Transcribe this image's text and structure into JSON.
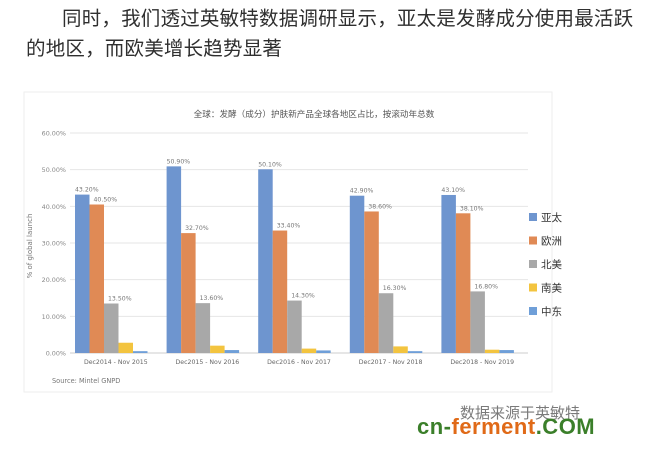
{
  "intro_text": "同时，我们透过英敏特数据调研显示，亚太是发酵成分使用最活跃的地区，而欧美增长趋势显著",
  "chart_data": {
    "type": "bar",
    "title": "全球：发酵（成分）护肤新产品全球各地区占比，按滚动年总数",
    "ylabel": "% of global launch",
    "xlabel": "",
    "ylim": [
      0,
      60
    ],
    "yticks": [
      "0.00%",
      "10.00%",
      "20.00%",
      "30.00%",
      "40.00%",
      "50.00%",
      "60.00%"
    ],
    "grid": true,
    "legend_position": "right",
    "categories": [
      "Dec2014 - Nov 2015",
      "Dec2015 - Nov 2016",
      "Dec2016 - Nov 2017",
      "Dec2017 - Nov 2018",
      "Dec2018 - Nov 2019"
    ],
    "series": [
      {
        "name": "亚太",
        "color": "#6e95cf",
        "values": [
          43.2,
          50.9,
          50.1,
          42.9,
          43.1
        ],
        "labels": [
          "43.20%",
          "50.90%",
          "50.10%",
          "42.90%",
          "43.10%"
        ]
      },
      {
        "name": "欧洲",
        "color": "#e08a55",
        "values": [
          40.5,
          32.7,
          33.4,
          38.6,
          38.1
        ],
        "labels": [
          "40.50%",
          "32.70%",
          "33.40%",
          "38.60%",
          "38.10%"
        ]
      },
      {
        "name": "北美",
        "color": "#a8a8a8",
        "values": [
          13.5,
          13.6,
          14.3,
          16.3,
          16.8
        ],
        "labels": [
          "13.50%",
          "13.60%",
          "14.30%",
          "16.30%",
          "16.80%"
        ]
      },
      {
        "name": "南美",
        "color": "#f3c43f",
        "values": [
          2.8,
          2.0,
          1.2,
          1.8,
          0.9
        ],
        "labels": [
          "",
          "",
          "",
          "",
          ""
        ]
      },
      {
        "name": "中东",
        "color": "#6f9fd8",
        "values": [
          0.5,
          0.8,
          0.7,
          0.5,
          0.8
        ],
        "labels": [
          "",
          "",
          "",
          "",
          ""
        ]
      }
    ],
    "source": "Source: Mintel GNPD"
  },
  "footer": {
    "note": "数据来源于英敏特",
    "brand_part1": "cn-",
    "brand_part2": "ferment",
    "brand_part3": ".COM"
  }
}
